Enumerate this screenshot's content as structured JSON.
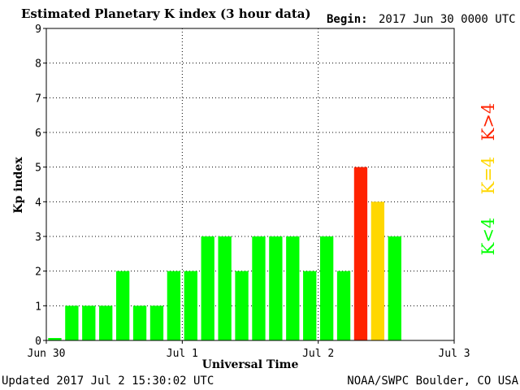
{
  "header": {
    "title": "Estimated Planetary K index (3 hour data)",
    "begin_label": "Begin:",
    "begin_value": "2017 Jun 30 0000 UTC"
  },
  "footer": {
    "updated": "Updated 2017 Jul  2 15:30:02 UTC",
    "source": "NOAA/SWPC Boulder, CO USA"
  },
  "legend": {
    "low": "K<4",
    "mid": "K=4",
    "high": "K>4"
  },
  "colors": {
    "low": "#00ff00",
    "mid": "#ffd700",
    "high": "#ff2200",
    "grid": "#000000"
  },
  "chart_data": {
    "type": "bar",
    "title": "Estimated Planetary K index (3 hour data)",
    "xlabel": "Universal Time",
    "ylabel": "Kp index",
    "ylim": [
      0,
      9
    ],
    "yticks": [
      "0",
      "1",
      "2",
      "3",
      "4",
      "5",
      "6",
      "7",
      "8",
      "9"
    ],
    "xticks": [
      "Jun 30",
      "Jul 1",
      "Jul 2",
      "Jul 3"
    ],
    "total_slots": 24,
    "values": [
      0,
      1,
      1,
      1,
      2,
      1,
      1,
      2,
      2,
      3,
      3,
      2,
      3,
      3,
      3,
      2,
      3,
      2,
      5,
      4,
      3
    ],
    "grid": true
  }
}
